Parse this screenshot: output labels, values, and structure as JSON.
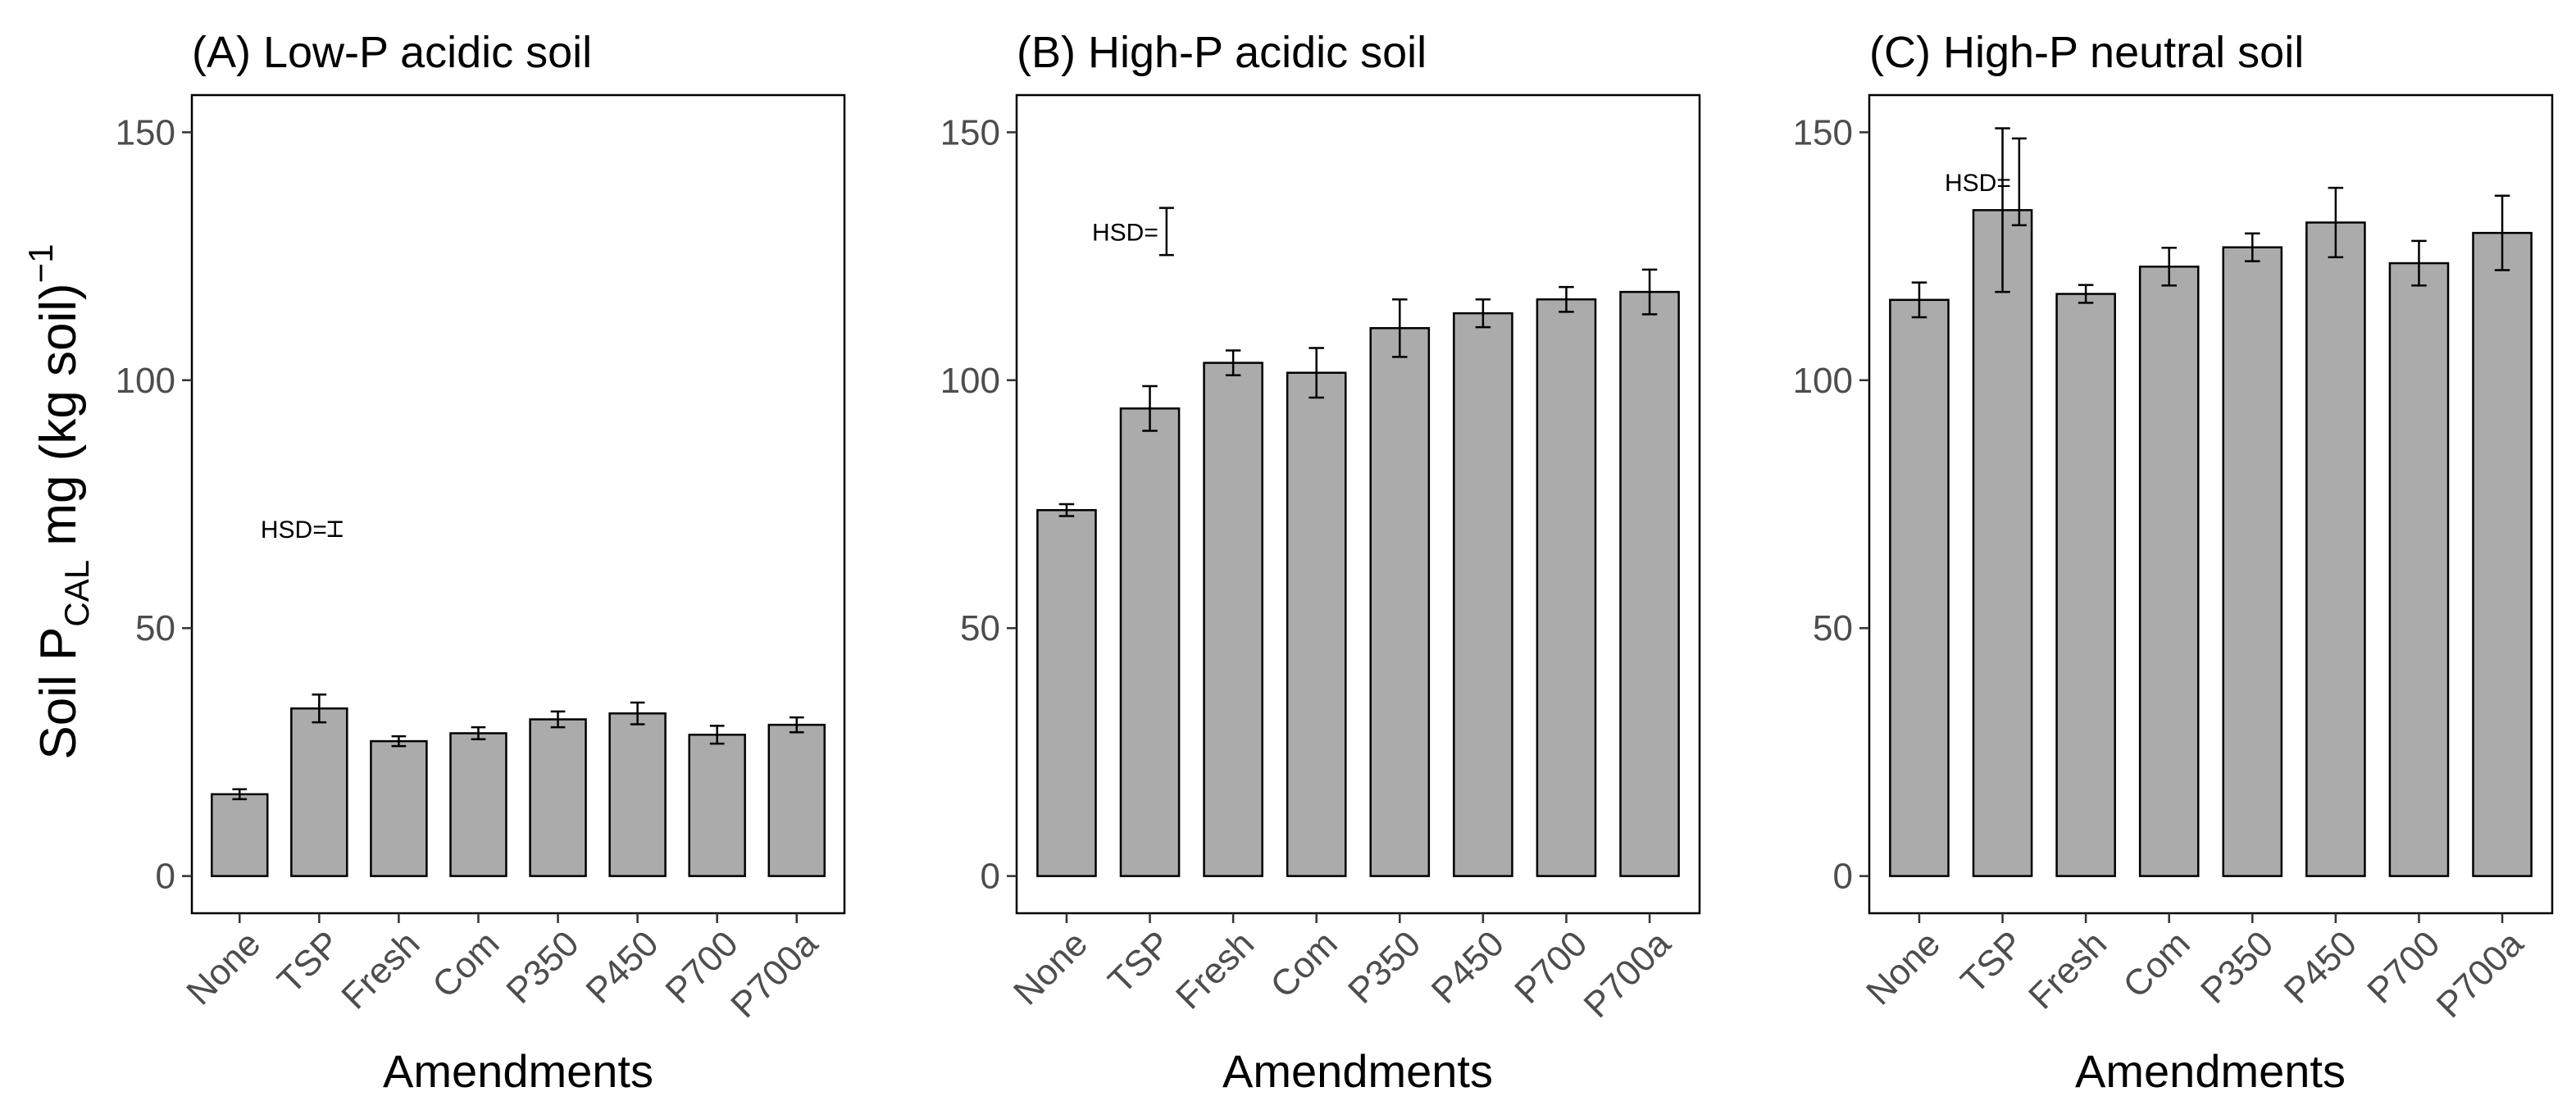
{
  "figure": {
    "ylabel_parts": {
      "a": "Soil  P",
      "sub": "CAL",
      "b": " mg (kg soil)",
      "sup": "−1"
    },
    "bar_color": "#ababab"
  },
  "chart_data": [
    {
      "type": "bar",
      "title": "(A) Low-P acidic soil",
      "xlabel": "Amendments",
      "ylabel": "Soil P_CAL mg (kg soil)^-1",
      "categories": [
        "None",
        "TSP",
        "Fresh",
        "Com",
        "P350",
        "P450",
        "P700",
        "P700a"
      ],
      "values": [
        16.5,
        33.8,
        27.2,
        28.8,
        31.6,
        32.8,
        28.5,
        30.5
      ],
      "errors": [
        1.0,
        2.8,
        1.0,
        1.2,
        1.6,
        2.2,
        1.8,
        1.5
      ],
      "hsd": {
        "label": "HSD=",
        "value": 2.8,
        "x": 2.2,
        "y": 70
      },
      "yticks": [
        0,
        50,
        100,
        150
      ],
      "ylim": [
        -7.5,
        157.5
      ]
    },
    {
      "type": "bar",
      "title": "(B) High-P acidic soil",
      "xlabel": "Amendments",
      "categories": [
        "None",
        "TSP",
        "Fresh",
        "Com",
        "P350",
        "P450",
        "P700",
        "P700a"
      ],
      "values": [
        73.8,
        94.3,
        103.5,
        101.5,
        110.5,
        113.5,
        116.3,
        117.8
      ],
      "errors": [
        1.2,
        4.5,
        2.5,
        5.0,
        5.8,
        2.8,
        2.5,
        4.5
      ],
      "hsd": {
        "label": "HSD=",
        "value": 9.5,
        "x": 2.2,
        "y": 130
      },
      "yticks": [
        0,
        50,
        100,
        150
      ],
      "ylim": [
        -7.5,
        157.5
      ]
    },
    {
      "type": "bar",
      "title": "(C) High-P neutral soil",
      "xlabel": "Amendments",
      "categories": [
        "None",
        "TSP",
        "Fresh",
        "Com",
        "P350",
        "P450",
        "P700",
        "P700a"
      ],
      "values": [
        116.2,
        134.3,
        117.4,
        122.9,
        126.8,
        131.8,
        123.6,
        129.7
      ],
      "errors": [
        3.5,
        16.5,
        1.8,
        3.8,
        2.8,
        7.0,
        4.5,
        7.5
      ],
      "hsd": {
        "label": "HSD=",
        "value": 17.5,
        "x": 2.2,
        "y": 140
      },
      "yticks": [
        0,
        50,
        100,
        150
      ],
      "ylim": [
        -7.5,
        157.5
      ]
    }
  ]
}
